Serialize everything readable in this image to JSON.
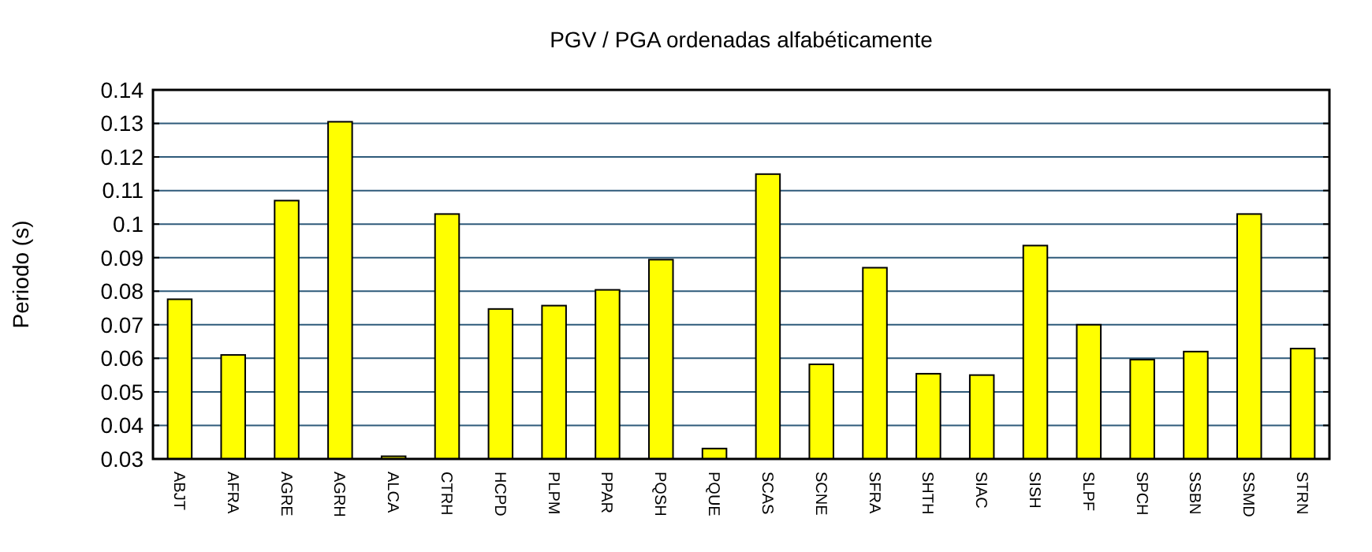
{
  "chart_data": {
    "type": "bar",
    "title": "PGV / PGA ordenadas alfabéticamente",
    "ylabel": "Periodo (s)",
    "categories": [
      "ABJT",
      "AFRA",
      "AGRE",
      "AGRH",
      "ALCA",
      "CTRH",
      "HCPD",
      "PLPM",
      "PPAR",
      "PQSH",
      "PQUE",
      "SCAS",
      "SCNE",
      "SFRA",
      "SHTH",
      "SIAC",
      "SISH",
      "SLPF",
      "SPCH",
      "SSBN",
      "SSMD",
      "STRN"
    ],
    "values": [
      0.0776,
      0.061,
      0.107,
      0.1305,
      0.0308,
      0.103,
      0.0747,
      0.0757,
      0.0804,
      0.0894,
      0.0331,
      0.1149,
      0.0582,
      0.087,
      0.0554,
      0.055,
      0.0936,
      0.07,
      0.0596,
      0.062,
      0.103,
      0.0629
    ],
    "color": "#ffff00",
    "ylim": [
      0.03,
      0.14
    ],
    "yticks": [
      0.03,
      0.04,
      0.05,
      0.06,
      0.07,
      0.08,
      0.09,
      0.1,
      0.11,
      0.12,
      0.13,
      0.14
    ],
    "grid": "y"
  }
}
